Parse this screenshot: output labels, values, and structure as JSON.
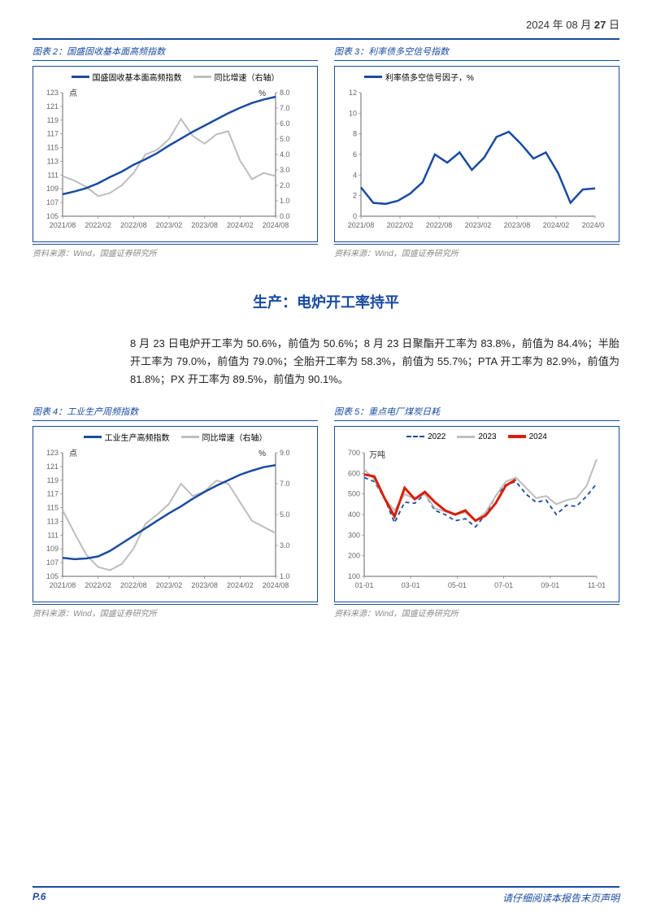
{
  "header": {
    "date_prefix": "2024 年 08 月 ",
    "date_day": "27",
    "date_suffix": " 日"
  },
  "source_text": "资料来源：Wind，国盛证券研究所",
  "chart2": {
    "title": "图表 2：国盛固收基本面高频指数",
    "legend": [
      {
        "label": "国盛固收基本面高频指数",
        "color": "#1a4ba0",
        "thick": true
      },
      {
        "label": "同比增速（右轴）",
        "color": "#bdbdbd",
        "thick": true
      }
    ],
    "left_unit": "点",
    "right_unit": "%",
    "x_labels": [
      "2021/08",
      "2022/02",
      "2022/08",
      "2023/02",
      "2023/08",
      "2024/02",
      "2024/08"
    ],
    "y_left": {
      "min": 105,
      "max": 123,
      "step": 2
    },
    "y_right": {
      "min": 0.0,
      "max": 8.0,
      "step": 1.0
    },
    "series_index": {
      "color": "#1a4ba0",
      "data": [
        108.2,
        108.6,
        109.1,
        109.8,
        110.7,
        111.5,
        112.5,
        113.3,
        114.2,
        115.3,
        116.3,
        117.3,
        118.2,
        119.1,
        120.0,
        120.8,
        121.5,
        122.0,
        122.4
      ]
    },
    "series_yoy": {
      "color": "#bdbdbd",
      "data": [
        2.6,
        2.3,
        1.9,
        1.3,
        1.5,
        2.0,
        2.8,
        4.0,
        4.3,
        5.0,
        6.3,
        5.2,
        4.7,
        5.3,
        5.5,
        3.6,
        2.4,
        2.8,
        2.6
      ]
    }
  },
  "chart3": {
    "title": "图表 3：利率债多空信号指数",
    "legend_label": "利率债多空信号因子，%",
    "x_labels": [
      "2021/08",
      "2022/02",
      "2022/08",
      "2023/02",
      "2023/08",
      "2024/02",
      "2024/08"
    ],
    "y": {
      "min": 0,
      "max": 12,
      "step": 2
    },
    "series": {
      "color": "#1a4ba0",
      "data": [
        2.8,
        1.3,
        1.2,
        1.5,
        2.2,
        3.3,
        6.0,
        5.2,
        6.2,
        4.5,
        5.7,
        7.7,
        8.2,
        7.0,
        5.6,
        6.2,
        4.2,
        1.3,
        2.6,
        2.7
      ]
    }
  },
  "section_heading": "生产：电炉开工率持平",
  "body_text": "8 月 23 日电炉开工率为 50.6%，前值为 50.6%；8 月 23 日聚酯开工率为 83.8%，前值为 84.4%；半胎开工率为 79.0%，前值为 79.0%；全胎开工率为 58.3%，前值为 55.7%；PTA 开工率为 82.9%，前值为 81.8%；PX 开工率为 89.5%，前值为 90.1%。",
  "chart4": {
    "title": "图表 4：工业生产周频指数",
    "legend": [
      {
        "label": "工业生产高频指数",
        "color": "#1a4ba0",
        "thick": true
      },
      {
        "label": "同比增速（右轴）",
        "color": "#bdbdbd",
        "thick": true
      }
    ],
    "left_unit": "点",
    "right_unit": "%",
    "x_labels": [
      "2021/08",
      "2022/02",
      "2022/08",
      "2023/02",
      "2023/08",
      "2024/02",
      "2024/08"
    ],
    "y_left": {
      "min": 105,
      "max": 123,
      "step": 2
    },
    "y_right": {
      "min": 1,
      "max": 9,
      "step": 2
    },
    "series_index": {
      "color": "#1a4ba0",
      "data": [
        107.7,
        107.5,
        107.6,
        107.9,
        108.7,
        109.8,
        110.9,
        112.0,
        113.1,
        114.2,
        115.2,
        116.3,
        117.3,
        118.2,
        119.0,
        119.8,
        120.4,
        120.9,
        121.2
      ]
    },
    "series_yoy": {
      "color": "#bdbdbd",
      "data": [
        5.3,
        3.8,
        2.4,
        1.6,
        1.4,
        1.8,
        2.8,
        4.4,
        5.0,
        5.7,
        7.0,
        6.2,
        6.5,
        7.2,
        7.0,
        5.8,
        4.6,
        4.2,
        3.8
      ]
    }
  },
  "chart5": {
    "title": "图表 5：重点电厂煤炭日耗",
    "y_unit": "万吨",
    "legend": [
      {
        "label": "2022",
        "color": "#1a4ba0",
        "style": "dash"
      },
      {
        "label": "2023",
        "color": "#bdbdbd",
        "style": "solid"
      },
      {
        "label": "2024",
        "color": "#d81e06",
        "style": "solid-thick"
      }
    ],
    "x_labels": [
      "01-01",
      "03-01",
      "05-01",
      "07-01",
      "09-01",
      "11-01"
    ],
    "y": {
      "min": 100,
      "max": 700,
      "step": 100
    },
    "s2022": {
      "color": "#1a4ba0",
      "data": [
        580,
        560,
        480,
        360,
        460,
        455,
        500,
        420,
        400,
        370,
        380,
        340,
        400,
        490,
        545,
        560,
        500,
        460,
        470,
        400,
        445,
        440,
        490,
        550
      ]
    },
    "s2023": {
      "color": "#bdbdbd",
      "data": [
        620,
        570,
        480,
        420,
        500,
        475,
        500,
        430,
        415,
        400,
        410,
        370,
        410,
        490,
        560,
        580,
        530,
        480,
        490,
        450,
        470,
        480,
        540,
        670
      ]
    },
    "s2024": {
      "color": "#d81e06",
      "data": [
        595,
        585,
        480,
        390,
        530,
        475,
        510,
        460,
        420,
        400,
        420,
        370,
        395,
        455,
        540,
        570
      ]
    }
  },
  "footer": {
    "page": "P.6",
    "disclaimer": "请仔细阅读本报告末页声明"
  }
}
